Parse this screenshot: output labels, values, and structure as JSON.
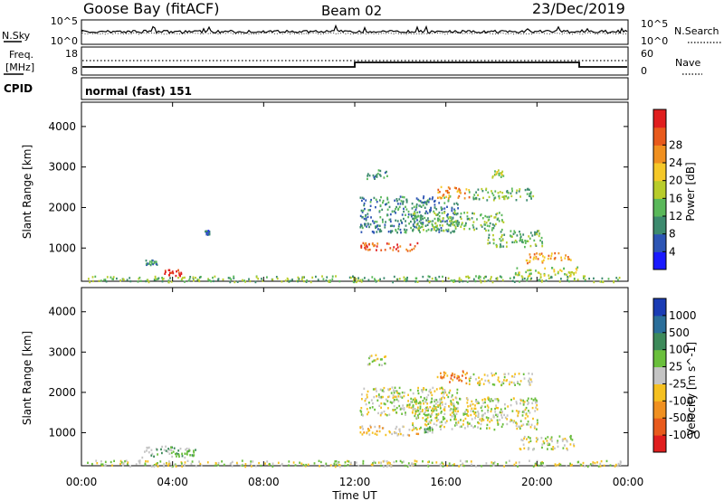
{
  "header": {
    "station": "Goose Bay (fitACF)",
    "beam": "Beam 02",
    "date": "23/Dec/2019"
  },
  "noise_panel": {
    "left_label": "N.Sky",
    "right_label": "N.Search",
    "left_ticks": [
      "10^5",
      "10^0"
    ],
    "right_ticks": [
      "10^5",
      "10^0"
    ]
  },
  "freq_panel": {
    "left_label_top": "Freq.",
    "left_label_bottom": "[MHz]",
    "right_label": "Nave",
    "left_ticks": [
      "18",
      "8"
    ],
    "right_ticks": [
      "60",
      "0"
    ]
  },
  "cpid": {
    "label": "CPID",
    "value": "normal (fast) 151"
  },
  "time_axis": {
    "label": "Time UT",
    "ticks": [
      "00:00",
      "04:00",
      "08:00",
      "12:00",
      "16:00",
      "20:00",
      "00:00"
    ]
  },
  "chart_data": [
    {
      "type": "heatmap",
      "name": "power",
      "ylabel": "Slant Range [km]",
      "ylim": [
        180,
        4600
      ],
      "xlim_hours": [
        0,
        24
      ],
      "yticks": [
        "1000",
        "2000",
        "3000",
        "4000"
      ],
      "colorbar": {
        "label": "Power [dB]",
        "ticks": [
          "4",
          "8",
          "12",
          "16",
          "20",
          "24",
          "28"
        ],
        "colors": [
          "#1a1aff",
          "#2d55b4",
          "#3d8a6e",
          "#5ab85a",
          "#b8cc2a",
          "#f5c828",
          "#f09020",
          "#e85a1c",
          "#e01e1e"
        ]
      },
      "regions": [
        {
          "t0": 0.2,
          "t1": 23.8,
          "r0": 180,
          "r1": 330,
          "level": 3
        },
        {
          "t0": 3.6,
          "t1": 4.4,
          "r0": 330,
          "r1": 480,
          "level": 8
        },
        {
          "t0": 2.7,
          "t1": 3.3,
          "r0": 600,
          "r1": 720,
          "level": 2
        },
        {
          "t0": 5.4,
          "t1": 5.6,
          "r0": 1350,
          "r1": 1450,
          "level": 1
        },
        {
          "t0": 12.2,
          "t1": 14.8,
          "r0": 950,
          "r1": 1150,
          "level": 7
        },
        {
          "t0": 12.2,
          "t1": 16.5,
          "r0": 1400,
          "r1": 2300,
          "level": 2
        },
        {
          "t0": 14.5,
          "t1": 18.5,
          "r0": 1450,
          "r1": 1900,
          "level": 3
        },
        {
          "t0": 15.6,
          "t1": 17.0,
          "r0": 2250,
          "r1": 2550,
          "level": 6
        },
        {
          "t0": 17.0,
          "t1": 19.8,
          "r0": 2200,
          "r1": 2500,
          "level": 3
        },
        {
          "t0": 17.8,
          "t1": 20.2,
          "r0": 1050,
          "r1": 1450,
          "level": 3
        },
        {
          "t0": 19.5,
          "t1": 21.5,
          "r0": 650,
          "r1": 900,
          "level": 6
        },
        {
          "t0": 19.0,
          "t1": 21.8,
          "r0": 330,
          "r1": 560,
          "level": 4
        },
        {
          "t0": 12.5,
          "t1": 13.4,
          "r0": 2700,
          "r1": 2950,
          "level": 2
        },
        {
          "t0": 18.0,
          "t1": 18.5,
          "r0": 2750,
          "r1": 2950,
          "level": 4
        }
      ]
    },
    {
      "type": "heatmap",
      "name": "velocity",
      "ylabel": "Slant Range [km]",
      "ylim": [
        180,
        4600
      ],
      "xlim_hours": [
        0,
        24
      ],
      "yticks": [
        "1000",
        "2000",
        "3000",
        "4000"
      ],
      "colorbar": {
        "label": "Velocity [m s^-1]",
        "ticks": [
          "1000",
          "500",
          "100",
          "25",
          "-25",
          "-100",
          "-500",
          "-1000"
        ],
        "colors": [
          "#1a3cb4",
          "#2a6e9a",
          "#3d8a5a",
          "#6abf3c",
          "#c4c4c4",
          "#f5c020",
          "#f09020",
          "#e85a1c",
          "#e01e1e"
        ]
      },
      "regions": [
        {
          "t0": 0.2,
          "t1": 23.8,
          "r0": 180,
          "r1": 330,
          "level": 4
        },
        {
          "t0": 2.5,
          "t1": 5.0,
          "r0": 400,
          "r1": 700,
          "level": 3
        },
        {
          "t0": 12.2,
          "t1": 14.8,
          "r0": 950,
          "r1": 1200,
          "level": 5
        },
        {
          "t0": 12.2,
          "t1": 16.5,
          "r0": 1450,
          "r1": 2150,
          "level": 4
        },
        {
          "t0": 14.5,
          "t1": 20.0,
          "r0": 1100,
          "r1": 1900,
          "level": 4
        },
        {
          "t0": 15.6,
          "t1": 17.0,
          "r0": 2250,
          "r1": 2550,
          "level": 6
        },
        {
          "t0": 17.0,
          "t1": 19.8,
          "r0": 2200,
          "r1": 2500,
          "level": 4
        },
        {
          "t0": 19.2,
          "t1": 21.6,
          "r0": 600,
          "r1": 950,
          "level": 4
        },
        {
          "t0": 15.0,
          "t1": 15.4,
          "r0": 1000,
          "r1": 1150,
          "level": 3
        },
        {
          "t0": 12.5,
          "t1": 13.4,
          "r0": 2700,
          "r1": 2950,
          "level": 4
        }
      ]
    }
  ]
}
